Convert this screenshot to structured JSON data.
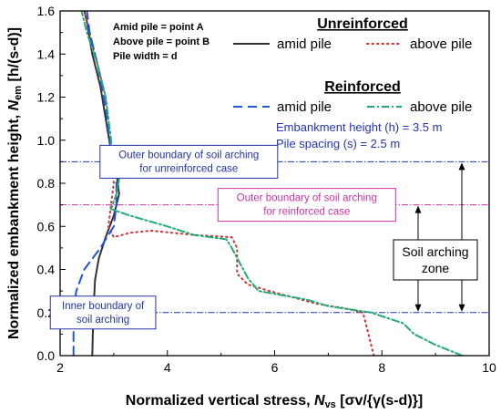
{
  "chart_data": {
    "type": "line",
    "xlabel_main": "Normalized vertical stress, ",
    "xlabel_sym": "N",
    "xlabel_sub": "vs",
    "xlabel_tail": " [σv/{γ(s-d)}]",
    "ylabel_main": "Normalized embankment height, ",
    "ylabel_sym": "N",
    "ylabel_sub": "em",
    "ylabel_tail": " [h/(s-d)]",
    "xlim": [
      2,
      10
    ],
    "ylim": [
      0,
      1.6
    ],
    "x_ticks": [
      "2",
      "4",
      "6",
      "8",
      "10"
    ],
    "y_ticks": [
      "0.0",
      "0.2",
      "0.4",
      "0.6",
      "0.8",
      "1.0",
      "1.2",
      "1.4",
      "1.6"
    ],
    "grid": false,
    "series": [
      {
        "name": "amid pile",
        "group": "Unreinforced",
        "color": "#333333",
        "style": "solid",
        "points": [
          [
            2.6,
            0
          ],
          [
            2.62,
            0.2
          ],
          [
            2.65,
            0.35
          ],
          [
            2.72,
            0.45
          ],
          [
            2.85,
            0.55
          ],
          [
            3.0,
            0.65
          ],
          [
            3.1,
            0.75
          ],
          [
            3.05,
            0.85
          ],
          [
            2.95,
            0.95
          ],
          [
            2.85,
            1.1
          ],
          [
            2.75,
            1.25
          ],
          [
            2.6,
            1.4
          ],
          [
            2.5,
            1.55
          ],
          [
            2.45,
            1.6
          ]
        ]
      },
      {
        "name": "above pile",
        "group": "Unreinforced",
        "color": "#cc3333",
        "style": "dotted",
        "points": [
          [
            7.85,
            0
          ],
          [
            7.75,
            0.1
          ],
          [
            7.65,
            0.2
          ],
          [
            7.3,
            0.22
          ],
          [
            6.8,
            0.24
          ],
          [
            5.9,
            0.3
          ],
          [
            5.5,
            0.33
          ],
          [
            5.3,
            0.38
          ],
          [
            5.3,
            0.5
          ],
          [
            5.2,
            0.55
          ],
          [
            4.5,
            0.56
          ],
          [
            4.1,
            0.57
          ],
          [
            3.7,
            0.58
          ],
          [
            3.3,
            0.57
          ],
          [
            3.0,
            0.55
          ],
          [
            2.9,
            0.6
          ],
          [
            2.95,
            0.7
          ],
          [
            3.0,
            0.8
          ],
          [
            2.95,
            1.0
          ],
          [
            2.85,
            1.2
          ],
          [
            2.65,
            1.4
          ],
          [
            2.5,
            1.55
          ],
          [
            2.45,
            1.6
          ]
        ]
      },
      {
        "name": "amid pile",
        "group": "Reinforced",
        "color": "#2255dd",
        "style": "dashed",
        "points": [
          [
            2.25,
            0
          ],
          [
            2.25,
            0.2
          ],
          [
            2.3,
            0.3
          ],
          [
            2.45,
            0.4
          ],
          [
            2.75,
            0.5
          ],
          [
            3.0,
            0.6
          ],
          [
            3.05,
            0.7
          ],
          [
            3.05,
            0.8
          ],
          [
            2.95,
            0.95
          ],
          [
            2.85,
            1.15
          ],
          [
            2.7,
            1.35
          ],
          [
            2.55,
            1.5
          ],
          [
            2.5,
            1.6
          ]
        ]
      },
      {
        "name": "above pile",
        "group": "Reinforced",
        "color": "#22aa77",
        "style": "dashdot",
        "points": [
          [
            9.5,
            0
          ],
          [
            9.0,
            0.05
          ],
          [
            8.6,
            0.1
          ],
          [
            8.4,
            0.15
          ],
          [
            7.8,
            0.2
          ],
          [
            7.0,
            0.23
          ],
          [
            6.6,
            0.26
          ],
          [
            5.7,
            0.3
          ],
          [
            5.5,
            0.36
          ],
          [
            5.2,
            0.5
          ],
          [
            5.1,
            0.54
          ],
          [
            4.5,
            0.56
          ],
          [
            4.0,
            0.6
          ],
          [
            3.3,
            0.65
          ],
          [
            2.95,
            0.68
          ],
          [
            3.05,
            0.75
          ],
          [
            3.1,
            0.82
          ],
          [
            3.0,
            0.85
          ],
          [
            2.95,
            1.0
          ],
          [
            2.85,
            1.2
          ],
          [
            2.7,
            1.35
          ],
          [
            2.5,
            1.5
          ],
          [
            2.4,
            1.6
          ]
        ]
      }
    ],
    "hlines": [
      {
        "y": 0.9,
        "color": "#2233aa",
        "label_lines": [
          "Outer boundary of soil arching",
          "for unreinforced case"
        ],
        "label_x": 4.4
      },
      {
        "y": 0.7,
        "color": "#cc33aa",
        "label_lines": [
          "Outer boundary of soil arching",
          "for reinforced case"
        ],
        "label_x": 6.6
      },
      {
        "y": 0.2,
        "color": "#2233aa",
        "label_lines": [
          "Inner boundary of",
          "soil arching"
        ],
        "label_x": 2.8
      }
    ]
  },
  "notes": {
    "definitions": [
      "Amid pile   = point A",
      "Above pile = point B",
      "Pile width  = d"
    ],
    "unreinforced_heading": "Unreinforced",
    "reinforced_heading": "Reinforced",
    "legend_amid": "amid pile",
    "legend_above": "above pile",
    "embankment_label": "Embankment height (h) = 3.5 m",
    "spacing_label": "Pile spacing (s) = 2.5 m",
    "zone_label": [
      "Soil arching",
      "zone"
    ]
  }
}
